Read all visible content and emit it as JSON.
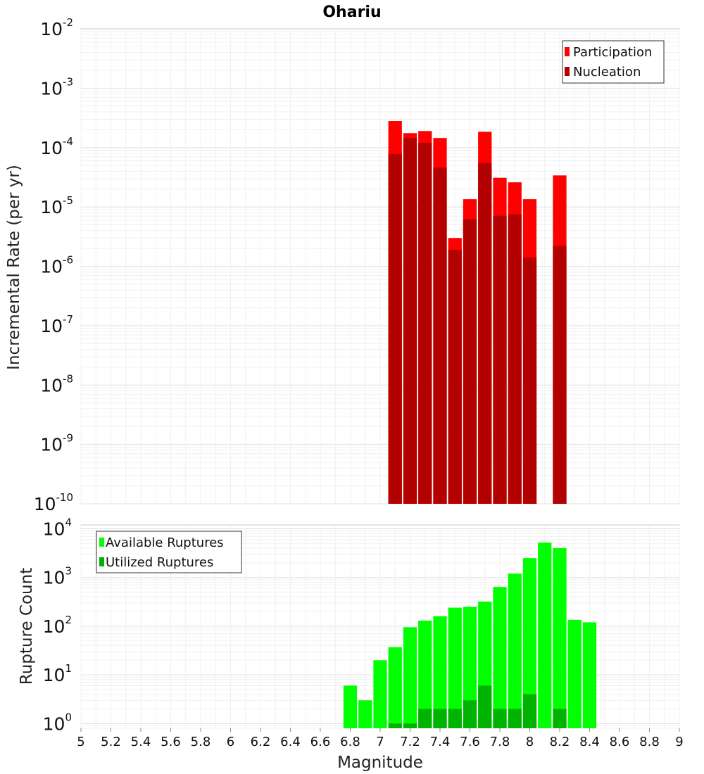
{
  "chart_data": [
    {
      "type": "bar",
      "scale": "log",
      "title": "Ohariu",
      "xlabel": "Magnitude",
      "ylabel": "Incremental Rate (per yr)",
      "xlim": [
        5,
        9
      ],
      "ylim_exponents": [
        -10,
        -2
      ],
      "bin_width": 0.1,
      "y_tick_base": "10",
      "y_tick_exponents": [
        "-2",
        "-3",
        "-4",
        "-5",
        "-6",
        "-7",
        "-8",
        "-9",
        "-10"
      ],
      "legend": [
        "Participation",
        "Nucleation"
      ],
      "legend_position": "top-right",
      "colors": {
        "Participation": "#ff0000",
        "Nucleation": "#b30000"
      },
      "series": [
        {
          "name": "Participation",
          "x": [
            7.1,
            7.2,
            7.3,
            7.4,
            7.5,
            7.6,
            7.7,
            7.8,
            7.9,
            8.0,
            8.2
          ],
          "values": [
            0.00028,
            0.000175,
            0.00019,
            0.000145,
            3e-06,
            1.35e-05,
            0.000185,
            3.1e-05,
            2.6e-05,
            1.35e-05,
            3.4e-05
          ]
        },
        {
          "name": "Nucleation",
          "x": [
            7.1,
            7.2,
            7.3,
            7.4,
            7.5,
            7.6,
            7.7,
            7.8,
            7.9,
            8.0,
            8.2
          ],
          "values": [
            7.8e-05,
            0.000145,
            0.00012,
            4.6e-05,
            1.9e-06,
            6.2e-06,
            5.5e-05,
            7.1e-06,
            7.5e-06,
            1.4e-06,
            2.2e-06
          ]
        }
      ]
    },
    {
      "type": "bar",
      "scale": "log",
      "title": "",
      "xlabel": "Magnitude",
      "ylabel": "Rupture Count",
      "xlim": [
        5,
        9
      ],
      "ylim": [
        0.8,
        12000
      ],
      "bin_width": 0.1,
      "y_tick_base": "10",
      "y_tick_exponents": [
        "4",
        "3",
        "2",
        "1",
        "0"
      ],
      "x_ticks": [
        "5",
        "5.2",
        "5.4",
        "5.6",
        "5.8",
        "6",
        "6.2",
        "6.4",
        "6.6",
        "6.8",
        "7",
        "7.2",
        "7.4",
        "7.6",
        "7.8",
        "8",
        "8.2",
        "8.4",
        "8.6",
        "8.8",
        "9"
      ],
      "legend": [
        "Available Ruptures",
        "Utilized Ruptures"
      ],
      "legend_position": "top-left",
      "colors": {
        "Available Ruptures": "#00ff00",
        "Utilized Ruptures": "#00b300"
      },
      "series": [
        {
          "name": "Available Ruptures",
          "x": [
            6.8,
            6.9,
            7.0,
            7.1,
            7.2,
            7.3,
            7.4,
            7.5,
            7.6,
            7.7,
            7.8,
            7.9,
            8.0,
            8.1,
            8.2,
            8.3,
            8.4
          ],
          "values": [
            6,
            3,
            20,
            37,
            95,
            130,
            160,
            240,
            250,
            320,
            640,
            1200,
            2500,
            5200,
            4000,
            135,
            120
          ]
        },
        {
          "name": "Utilized Ruptures",
          "x": [
            7.1,
            7.2,
            7.3,
            7.4,
            7.5,
            7.6,
            7.7,
            7.8,
            7.9,
            8.0,
            8.2
          ],
          "values": [
            1,
            1,
            2,
            2,
            2,
            3,
            6,
            2,
            2,
            4,
            2
          ]
        }
      ]
    }
  ]
}
